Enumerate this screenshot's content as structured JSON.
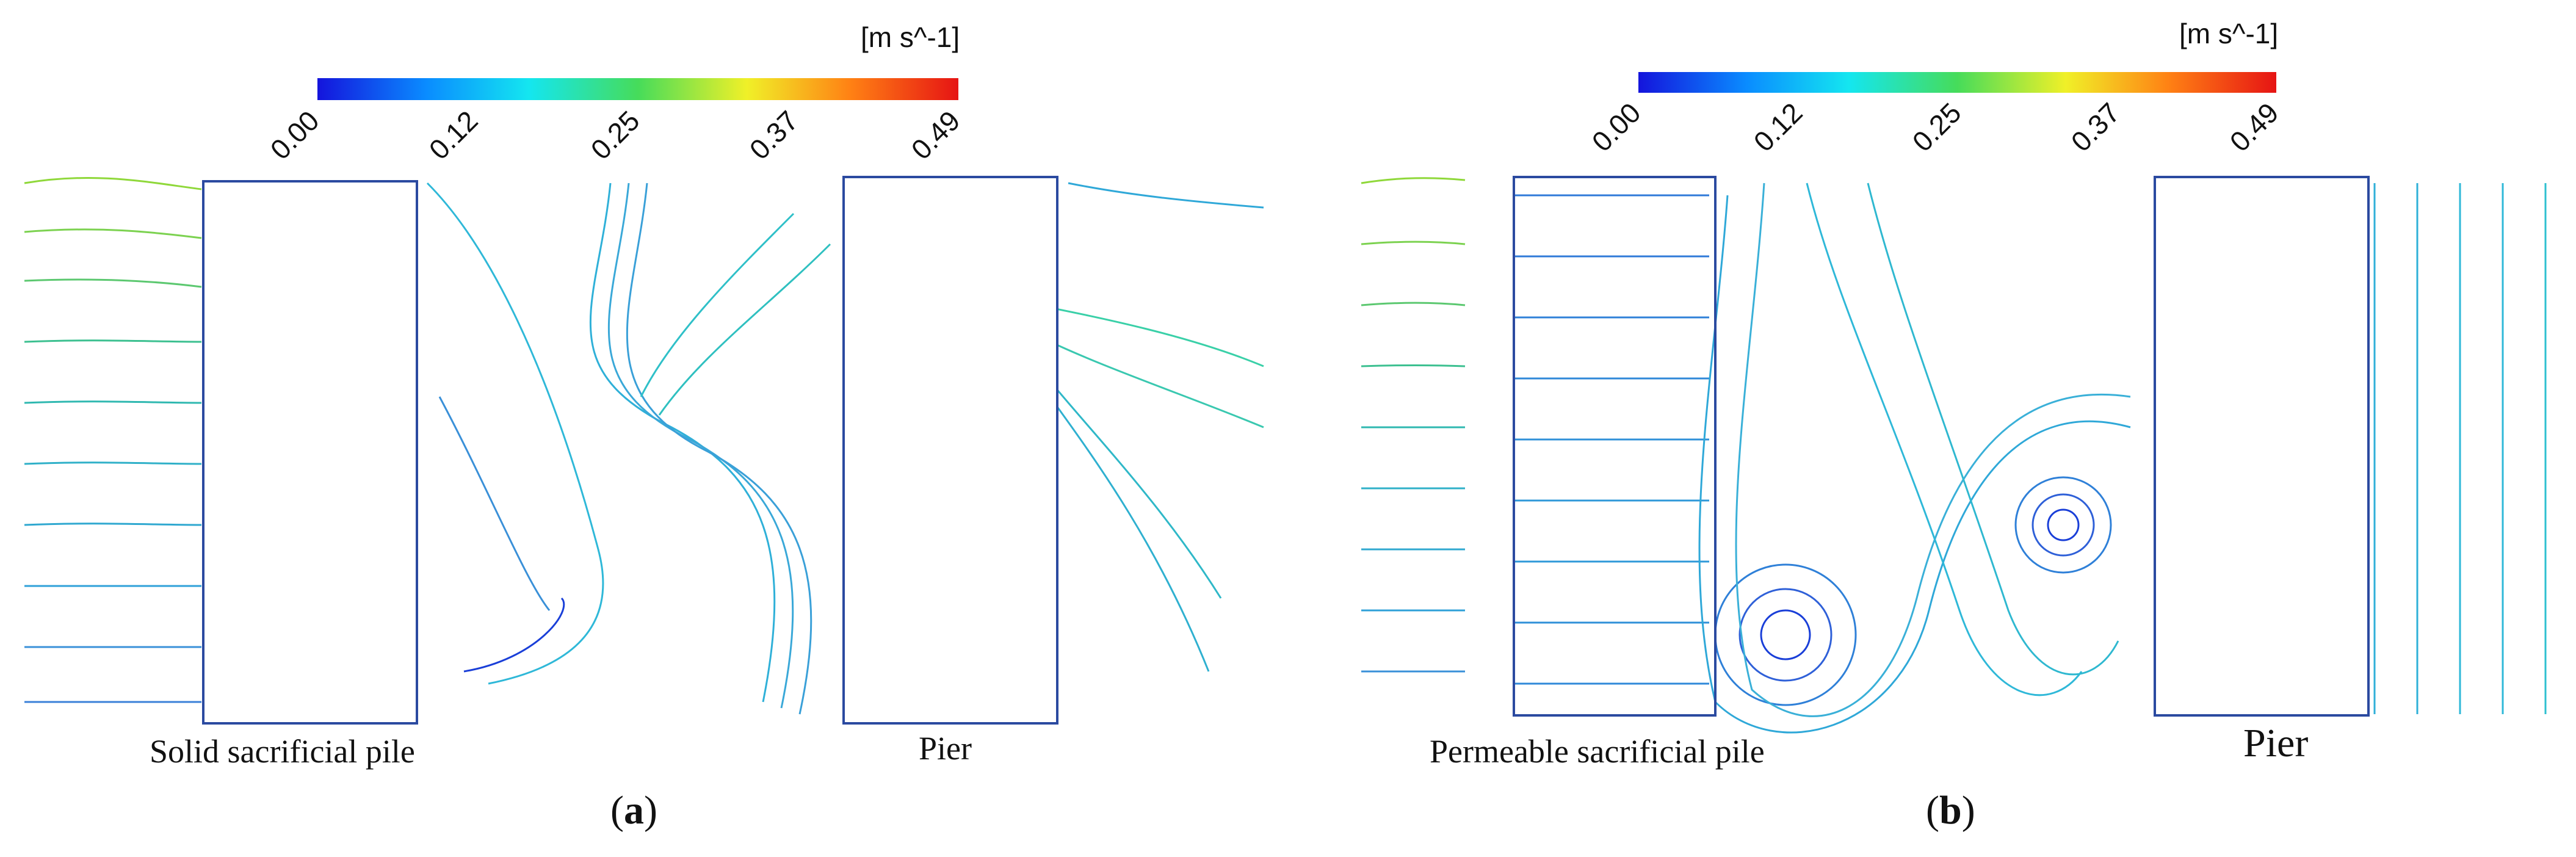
{
  "colorbar": {
    "units": "[m s^-1]",
    "ticks": [
      "0.00",
      "0.12",
      "0.25",
      "0.37",
      "0.49"
    ],
    "colors": [
      "#1414dc",
      "#0a8cff",
      "#14e6f0",
      "#46dc5a",
      "#f0f028",
      "#ff8214",
      "#e61414"
    ]
  },
  "panels": [
    {
      "id": "a",
      "label_open": "(",
      "label_letter": "a",
      "label_close": ")",
      "pile_caption": "Solid sacrificial pile",
      "pier_caption": "Pier",
      "pile_type": "solid"
    },
    {
      "id": "b",
      "label_open": "(",
      "label_letter": "b",
      "label_close": ")",
      "pile_caption": "Permeable sacrificial pile",
      "pier_caption": "Pier",
      "pile_type": "permeable"
    }
  ],
  "colors": {
    "rect_border": "#2b4aa0",
    "slow_flow": "#1a3fd8",
    "mid_flow": "#2fb8d8",
    "fast_flow": "#8fd83a"
  }
}
